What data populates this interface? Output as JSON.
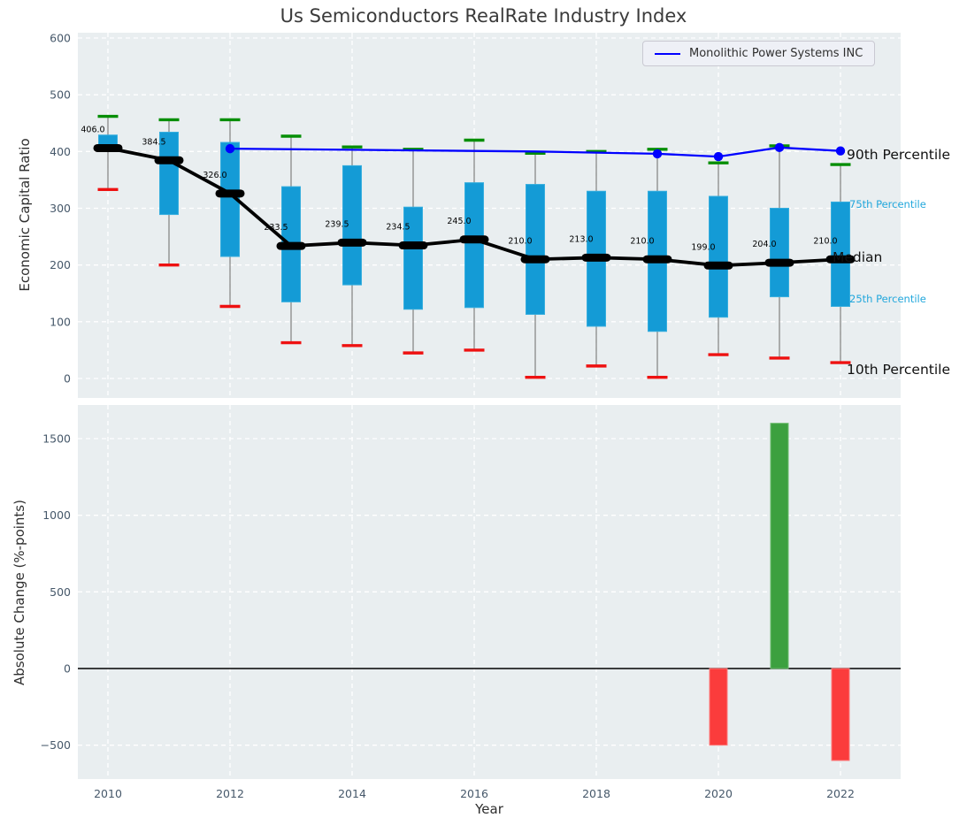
{
  "title": "Us Semiconductors RealRate Industry Index",
  "legend": {
    "label": "Monolithic Power Systems INC",
    "line_color": "#0000ff"
  },
  "annotations": {
    "p90_label": "90th Percentile",
    "p75_label": "75th Percentile",
    "median_label": "Median",
    "p25_label": "25th Percentile",
    "p10_label": "10th Percentile"
  },
  "colors": {
    "plot_bg": "#e9eef0",
    "grid": "#ffffff",
    "tick": "#46586a",
    "box_fill": "#149bd6",
    "box_edge": "#36aede",
    "whisker": "#909090",
    "p90_cap": "#058e05",
    "p10_cap": "#ee1111",
    "median": "#000000",
    "company_line": "#0000ff",
    "bar_up": "#3ca03f",
    "bar_up_edge": "#6cbc6e",
    "bar_down": "#fb3c3c",
    "bar_down_edge": "#fd7b7b",
    "zero_line": "#000000",
    "percentile_small_label": "#22a7dc"
  },
  "x_axis": {
    "label": "Year",
    "ticks": [
      2010,
      2012,
      2014,
      2016,
      2018,
      2020,
      2022
    ]
  },
  "chart_data": [
    {
      "type": "boxplot",
      "title": "Us Semiconductors RealRate Industry Index",
      "ylabel": "Economic Capital Ratio",
      "ylim": [
        -35,
        610
      ],
      "yticks": [
        0,
        100,
        200,
        300,
        400,
        500,
        600
      ],
      "grid": true,
      "legend_position": "upper right",
      "years": [
        2010,
        2011,
        2012,
        2013,
        2014,
        2015,
        2016,
        2017,
        2018,
        2019,
        2020,
        2021,
        2022
      ],
      "percentile_90": [
        462,
        456,
        456,
        427,
        408,
        404,
        420,
        397,
        400,
        404,
        380,
        410,
        377
      ],
      "percentile_75": [
        429,
        434,
        416,
        338,
        375,
        302,
        345,
        342,
        330,
        330,
        321,
        300,
        311
      ],
      "median": [
        406.0,
        384.5,
        326.0,
        233.5,
        239.5,
        234.5,
        245.0,
        210.0,
        213.0,
        210.0,
        199.0,
        204.0,
        210.0
      ],
      "percentile_25": [
        401,
        289,
        215,
        135,
        165,
        122,
        125,
        113,
        92,
        83,
        108,
        144,
        127
      ],
      "percentile_10": [
        333,
        200,
        127,
        63,
        58,
        45,
        50,
        2,
        22,
        2,
        42,
        36,
        28
      ],
      "series": [
        {
          "name": "Monolithic Power Systems INC",
          "x": [
            2012,
            2013,
            2014,
            2015,
            2016,
            2017,
            2018,
            2019,
            2020,
            2021,
            2022
          ],
          "values": [
            405,
            404,
            403,
            402,
            401,
            400,
            398,
            396,
            391,
            407,
            401
          ],
          "marker_x": [
            2012,
            2019,
            2020,
            2021,
            2022
          ],
          "color": "#0000ff"
        }
      ]
    },
    {
      "type": "bar",
      "ylabel": "Absolute Change (%-points)",
      "xlabel": "Year",
      "ylim": [
        -740,
        1720
      ],
      "yticks": [
        -500,
        0,
        500,
        1000,
        1500
      ],
      "grid": true,
      "x": [
        2020,
        2021,
        2022
      ],
      "values": [
        -500,
        1600,
        -600
      ],
      "bar_colors": [
        "#fb3c3c",
        "#3ca03f",
        "#fb3c3c"
      ]
    }
  ]
}
